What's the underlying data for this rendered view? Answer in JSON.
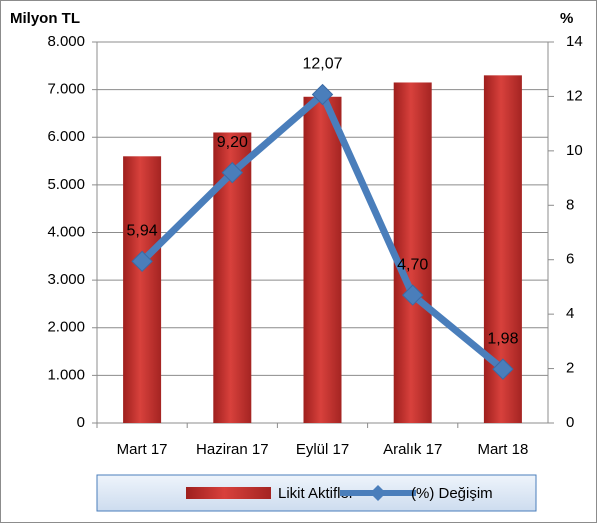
{
  "chart_data": {
    "type": "bar",
    "y_label": "Milyon TL",
    "y2_label": "%",
    "categories": [
      "Mart 17",
      "Haziran 17",
      "Eylül 17",
      "Aralık 17",
      "Mart 18"
    ],
    "series": [
      {
        "name": "Likit Aktifler",
        "color": "#c0302e",
        "values": [
          5600,
          6100,
          6850,
          7150,
          7300
        ]
      },
      {
        "name": "(%) Değişim",
        "color": "#4a7ebb",
        "type": "line",
        "axis": "y2",
        "values": [
          5.94,
          9.2,
          12.07,
          4.7,
          1.98
        ],
        "value_labels": [
          "5,94",
          "9,20",
          "12,07",
          "4,70",
          "1,98"
        ]
      }
    ],
    "ylim": [
      0,
      8000
    ],
    "yticks": [
      0,
      {
        "value": 1000,
        "label": "1.000"
      },
      {
        "value": 2000,
        "label": "2.000"
      },
      {
        "value": 3000,
        "label": "3.000"
      },
      {
        "value": 4000,
        "label": "4.000"
      },
      {
        "value": 5000,
        "label": "5.000"
      },
      {
        "value": 6000,
        "label": "6.000"
      },
      {
        "value": 7000,
        "label": "7.000"
      },
      {
        "value": 8000,
        "label": "8.000"
      }
    ],
    "y2lim": [
      0,
      14
    ],
    "y2ticks": [
      0,
      2,
      4,
      6,
      8,
      10,
      12,
      14
    ],
    "grid": true,
    "legend": "bottom"
  }
}
